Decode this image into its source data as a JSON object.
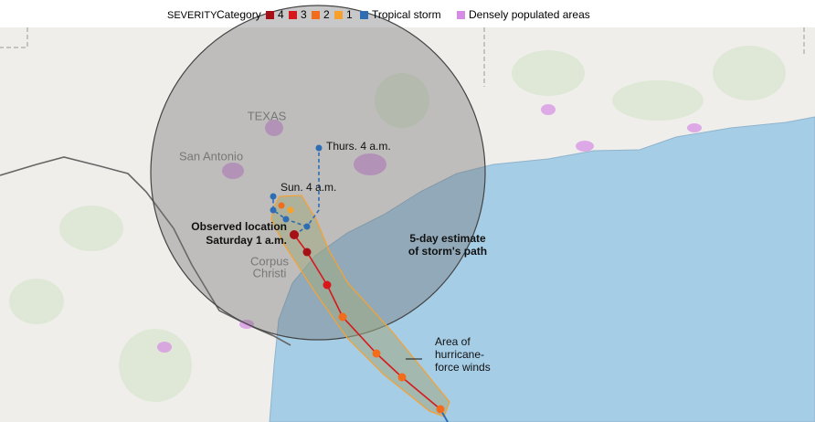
{
  "legend": {
    "title": "SEVERITY",
    "category_label": "Category",
    "items": [
      {
        "label": "4",
        "color": "#a50f15"
      },
      {
        "label": "3",
        "color": "#d7191c"
      },
      {
        "label": "2",
        "color": "#f26c1b"
      },
      {
        "label": "1",
        "color": "#f7a12b"
      },
      {
        "label": "Tropical storm",
        "color": "#2e6db4"
      },
      {
        "label": "Densely populated areas",
        "color": "#d68be4"
      }
    ]
  },
  "places": {
    "state": "TEXAS",
    "city1": "San Antonio",
    "city2": [
      "Corpus",
      "Christi"
    ]
  },
  "annotations": {
    "thurs": "Thurs. 4 a.m.",
    "sun": "Sun. 4 a.m.",
    "observed": [
      "Observed location",
      "Saturday 1 a.m."
    ],
    "estimate": [
      "5-day estimate",
      "of storm's path"
    ],
    "wind_area": [
      "Area of",
      "hurricane-",
      "force winds"
    ]
  }
}
